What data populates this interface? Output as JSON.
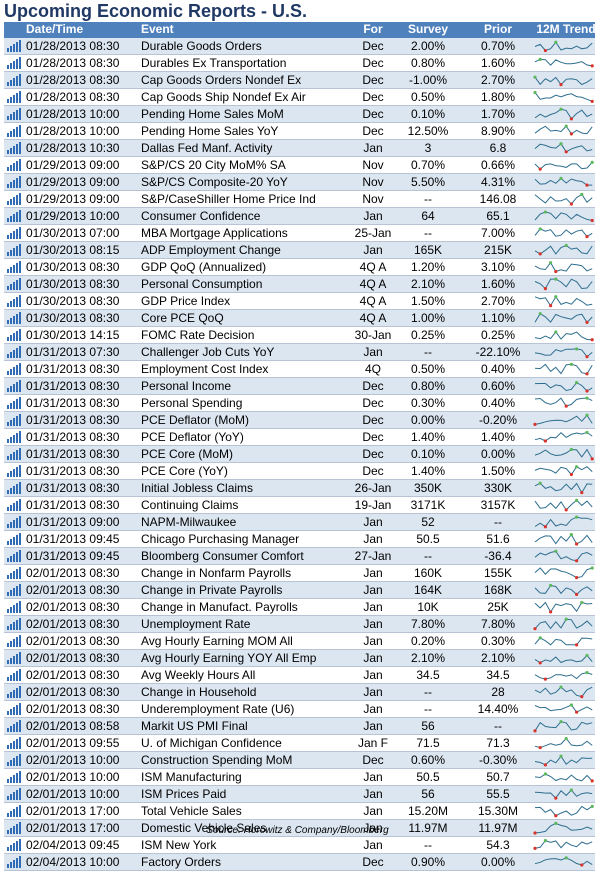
{
  "title": "Upcoming Economic Reports - U.S.",
  "headers": {
    "datetime": "Date/Time",
    "event": "Event",
    "for": "For",
    "survey": "Survey",
    "prior": "Prior",
    "trend": "12M Trend"
  },
  "rows": [
    {
      "datetime": "01/28/2013 08:30",
      "event": "Durable Goods Orders",
      "for": "Dec",
      "survey": "2.00%",
      "prior": "0.70%"
    },
    {
      "datetime": "01/28/2013 08:30",
      "event": "Durables Ex Transportation",
      "for": "Dec",
      "survey": "0.80%",
      "prior": "1.60%"
    },
    {
      "datetime": "01/28/2013 08:30",
      "event": "Cap Goods Orders Nondef Ex",
      "for": "Dec",
      "survey": "-1.00%",
      "prior": "2.70%"
    },
    {
      "datetime": "01/28/2013 08:30",
      "event": "Cap Goods Ship Nondef Ex Air",
      "for": "Dec",
      "survey": "0.50%",
      "prior": "1.80%"
    },
    {
      "datetime": "01/28/2013 10:00",
      "event": "Pending Home Sales MoM",
      "for": "Dec",
      "survey": "0.10%",
      "prior": "1.70%"
    },
    {
      "datetime": "01/28/2013 10:00",
      "event": "Pending Home Sales YoY",
      "for": "Dec",
      "survey": "12.50%",
      "prior": "8.90%"
    },
    {
      "datetime": "01/28/2013 10:30",
      "event": "Dallas Fed Manf. Activity",
      "for": "Jan",
      "survey": "3",
      "prior": "6.8"
    },
    {
      "datetime": "01/29/2013 09:00",
      "event": "S&P/CS 20 City MoM% SA",
      "for": "Nov",
      "survey": "0.70%",
      "prior": "0.66%"
    },
    {
      "datetime": "01/29/2013 09:00",
      "event": "S&P/CS Composite-20 YoY",
      "for": "Nov",
      "survey": "5.50%",
      "prior": "4.31%"
    },
    {
      "datetime": "01/29/2013 09:00",
      "event": "S&P/CaseShiller Home Price Ind",
      "for": "Nov",
      "survey": "--",
      "prior": "146.08"
    },
    {
      "datetime": "01/29/2013 10:00",
      "event": "Consumer Confidence",
      "for": "Jan",
      "survey": "64",
      "prior": "65.1"
    },
    {
      "datetime": "01/30/2013 07:00",
      "event": "MBA Mortgage Applications",
      "for": "25-Jan",
      "survey": "--",
      "prior": "7.00%"
    },
    {
      "datetime": "01/30/2013 08:15",
      "event": "ADP Employment Change",
      "for": "Jan",
      "survey": "165K",
      "prior": "215K"
    },
    {
      "datetime": "01/30/2013 08:30",
      "event": "GDP QoQ (Annualized)",
      "for": "4Q A",
      "survey": "1.20%",
      "prior": "3.10%"
    },
    {
      "datetime": "01/30/2013 08:30",
      "event": "Personal Consumption",
      "for": "4Q A",
      "survey": "2.10%",
      "prior": "1.60%"
    },
    {
      "datetime": "01/30/2013 08:30",
      "event": "GDP Price Index",
      "for": "4Q A",
      "survey": "1.50%",
      "prior": "2.70%"
    },
    {
      "datetime": "01/30/2013 08:30",
      "event": "Core PCE QoQ",
      "for": "4Q A",
      "survey": "1.00%",
      "prior": "1.10%"
    },
    {
      "datetime": "01/30/2013 14:15",
      "event": "FOMC Rate Decision",
      "for": "30-Jan",
      "survey": "0.25%",
      "prior": "0.25%"
    },
    {
      "datetime": "01/31/2013 07:30",
      "event": "Challenger Job Cuts YoY",
      "for": "Jan",
      "survey": "--",
      "prior": "-22.10%"
    },
    {
      "datetime": "01/31/2013 08:30",
      "event": "Employment Cost Index",
      "for": "4Q",
      "survey": "0.50%",
      "prior": "0.40%"
    },
    {
      "datetime": "01/31/2013 08:30",
      "event": "Personal Income",
      "for": "Dec",
      "survey": "0.80%",
      "prior": "0.60%"
    },
    {
      "datetime": "01/31/2013 08:30",
      "event": "Personal Spending",
      "for": "Dec",
      "survey": "0.30%",
      "prior": "0.40%"
    },
    {
      "datetime": "01/31/2013 08:30",
      "event": "PCE Deflator (MoM)",
      "for": "Dec",
      "survey": "0.00%",
      "prior": "-0.20%"
    },
    {
      "datetime": "01/31/2013 08:30",
      "event": "PCE Deflator (YoY)",
      "for": "Dec",
      "survey": "1.40%",
      "prior": "1.40%"
    },
    {
      "datetime": "01/31/2013 08:30",
      "event": "PCE Core (MoM)",
      "for": "Dec",
      "survey": "0.10%",
      "prior": "0.00%"
    },
    {
      "datetime": "01/31/2013 08:30",
      "event": "PCE Core (YoY)",
      "for": "Dec",
      "survey": "1.40%",
      "prior": "1.50%"
    },
    {
      "datetime": "01/31/2013 08:30",
      "event": "Initial Jobless Claims",
      "for": "26-Jan",
      "survey": "350K",
      "prior": "330K"
    },
    {
      "datetime": "01/31/2013 08:30",
      "event": "Continuing Claims",
      "for": "19-Jan",
      "survey": "3171K",
      "prior": "3157K"
    },
    {
      "datetime": "01/31/2013 09:00",
      "event": "NAPM-Milwaukee",
      "for": "Jan",
      "survey": "52",
      "prior": "--"
    },
    {
      "datetime": "01/31/2013 09:45",
      "event": "Chicago Purchasing Manager",
      "for": "Jan",
      "survey": "50.5",
      "prior": "51.6"
    },
    {
      "datetime": "01/31/2013 09:45",
      "event": "Bloomberg Consumer Comfort",
      "for": "27-Jan",
      "survey": "--",
      "prior": "-36.4"
    },
    {
      "datetime": "02/01/2013 08:30",
      "event": "Change in Nonfarm Payrolls",
      "for": "Jan",
      "survey": "160K",
      "prior": "155K"
    },
    {
      "datetime": "02/01/2013 08:30",
      "event": "Change in Private Payrolls",
      "for": "Jan",
      "survey": "164K",
      "prior": "168K"
    },
    {
      "datetime": "02/01/2013 08:30",
      "event": "Change in Manufact. Payrolls",
      "for": "Jan",
      "survey": "10K",
      "prior": "25K"
    },
    {
      "datetime": "02/01/2013 08:30",
      "event": "Unemployment Rate",
      "for": "Jan",
      "survey": "7.80%",
      "prior": "7.80%"
    },
    {
      "datetime": "02/01/2013 08:30",
      "event": "Avg Hourly Earning MOM All",
      "for": "Jan",
      "survey": "0.20%",
      "prior": "0.30%"
    },
    {
      "datetime": "02/01/2013 08:30",
      "event": "Avg Hourly Earning YOY All Emp",
      "for": "Jan",
      "survey": "2.10%",
      "prior": "2.10%"
    },
    {
      "datetime": "02/01/2013 08:30",
      "event": "Avg Weekly Hours All",
      "for": "Jan",
      "survey": "34.5",
      "prior": "34.5"
    },
    {
      "datetime": "02/01/2013 08:30",
      "event": "Change in Household",
      "for": "Jan",
      "survey": "--",
      "prior": "28"
    },
    {
      "datetime": "02/01/2013 08:30",
      "event": "Underemployment Rate (U6)",
      "for": "Jan",
      "survey": "--",
      "prior": "14.40%"
    },
    {
      "datetime": "02/01/2013 08:58",
      "event": "Markit US PMI Final",
      "for": "Jan",
      "survey": "56",
      "prior": "--"
    },
    {
      "datetime": "02/01/2013 09:55",
      "event": "U. of Michigan Confidence",
      "for": "Jan F",
      "survey": "71.5",
      "prior": "71.3"
    },
    {
      "datetime": "02/01/2013 10:00",
      "event": "Construction Spending MoM",
      "for": "Dec",
      "survey": "0.60%",
      "prior": "-0.30%"
    },
    {
      "datetime": "02/01/2013 10:00",
      "event": "ISM Manufacturing",
      "for": "Jan",
      "survey": "50.5",
      "prior": "50.7"
    },
    {
      "datetime": "02/01/2013 10:00",
      "event": "ISM Prices Paid",
      "for": "Jan",
      "survey": "56",
      "prior": "55.5"
    },
    {
      "datetime": "02/01/2013 17:00",
      "event": "Total Vehicle Sales",
      "for": "Jan",
      "survey": "15.20M",
      "prior": "15.30M"
    },
    {
      "datetime": "02/01/2013 17:00",
      "event": "Domestic Vehicle Sales",
      "for": "Jan",
      "survey": "11.97M",
      "prior": "11.97M"
    },
    {
      "datetime": "02/04/2013 09:45",
      "event": "ISM New York",
      "for": "Jan",
      "survey": "--",
      "prior": "54.3"
    },
    {
      "datetime": "02/04/2013 10:00",
      "event": "Factory Orders",
      "for": "Dec",
      "survey": "0.90%",
      "prior": "0.00%"
    }
  ],
  "source": "Source: Horowitz & Company/Bloomberg",
  "colors": {
    "title": "#1f3864",
    "header_bg": "#4f81bd",
    "band": "#dce6f1",
    "spark_line": "#2e6e8e",
    "marker_high": "#5cb85c",
    "marker_low": "#d9342b",
    "icon_bars": "#2f6cb5"
  },
  "icons": {
    "row_icon": "bar-chart-icon",
    "trend": "sparkline-icon"
  }
}
